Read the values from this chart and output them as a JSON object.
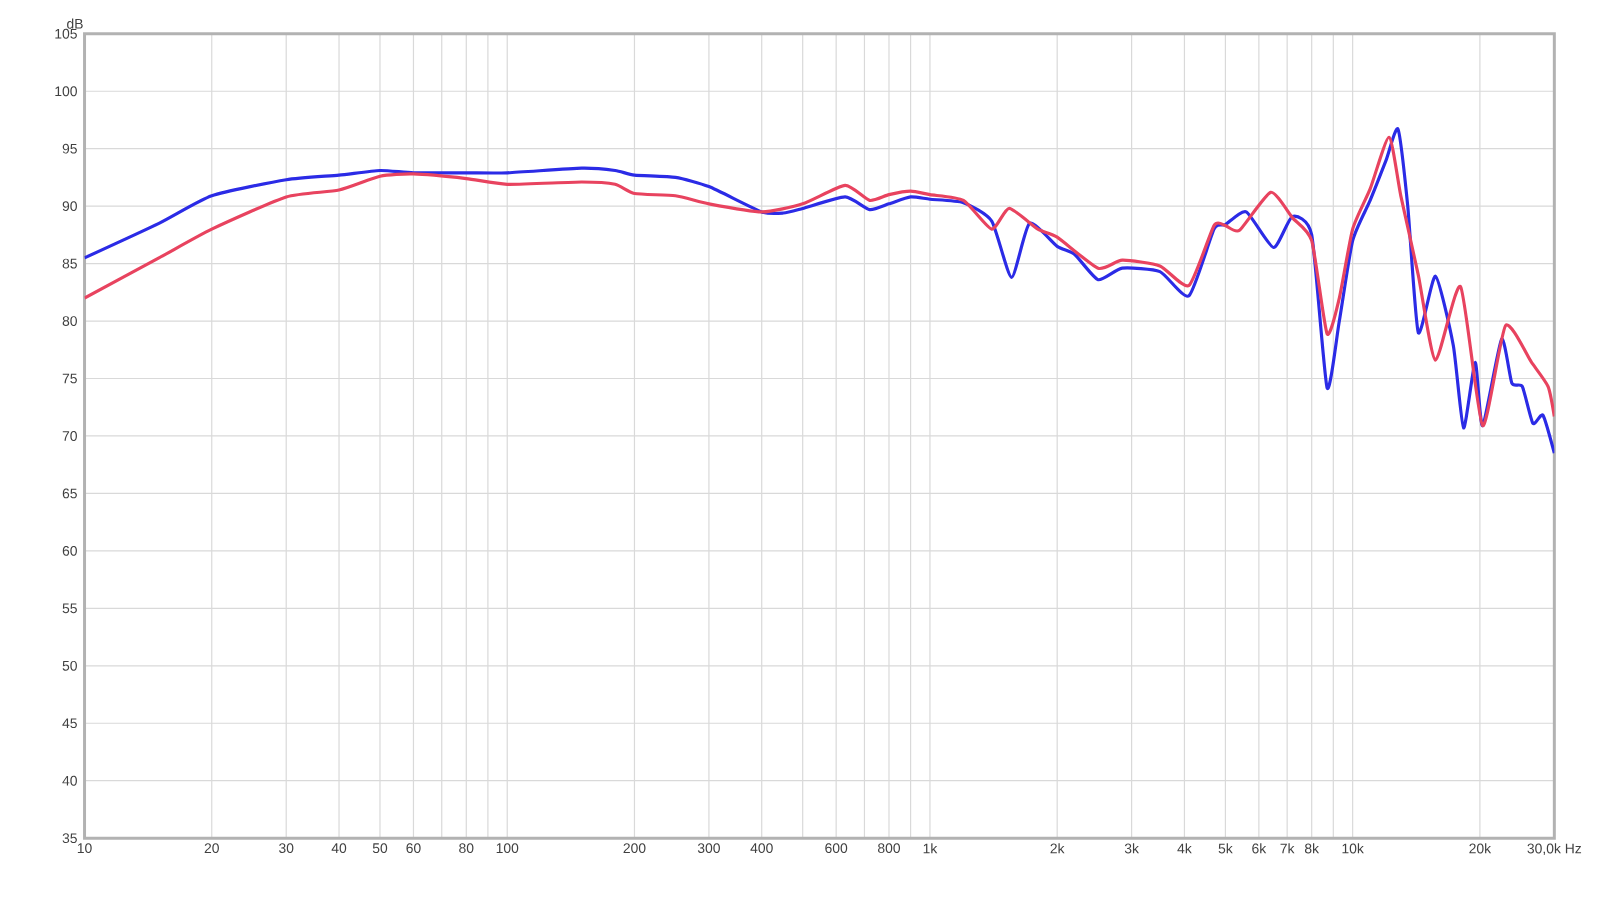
{
  "chart_data": {
    "type": "line",
    "ylabel": "dB",
    "log": "x",
    "grid": true,
    "xlim": [
      10,
      30000
    ],
    "ylim": [
      35,
      105
    ],
    "xticks": [
      10,
      20,
      30,
      40,
      50,
      60,
      {
        "value": 70,
        "label": null
      },
      80,
      {
        "value": 90,
        "label": null
      },
      100,
      200,
      300,
      400,
      {
        "value": 500,
        "label": null
      },
      600,
      {
        "value": 700,
        "label": null
      },
      800,
      {
        "value": 900,
        "label": null
      },
      {
        "value": 1000,
        "label": "1k"
      },
      {
        "value": 2000,
        "label": "2k"
      },
      {
        "value": 3000,
        "label": "3k"
      },
      {
        "value": 4000,
        "label": "4k"
      },
      {
        "value": 5000,
        "label": "5k"
      },
      {
        "value": 6000,
        "label": "6k"
      },
      {
        "value": 7000,
        "label": "7k"
      },
      {
        "value": 8000,
        "label": "8k"
      },
      {
        "value": 9000,
        "label": null
      },
      {
        "value": 10000,
        "label": "10k"
      },
      {
        "value": 20000,
        "label": "20k"
      },
      {
        "value": 30000,
        "label": "30,0k Hz"
      }
    ],
    "yticks": [
      35,
      40,
      45,
      50,
      55,
      60,
      65,
      70,
      75,
      80,
      85,
      90,
      95,
      100,
      105
    ],
    "series": [
      {
        "color": "#2b2be6",
        "x": [
          10,
          15,
          20,
          30,
          40,
          50,
          60,
          80,
          100,
          150,
          180,
          200,
          250,
          300,
          400,
          450,
          500,
          630,
          720,
          800,
          900,
          1000,
          1200,
          1400,
          1560,
          1720,
          2000,
          2200,
          2500,
          2850,
          3500,
          4100,
          4700,
          5000,
          5600,
          6500,
          7200,
          8000,
          8700,
          9300,
          10000,
          11000,
          12000,
          12800,
          13500,
          14300,
          15700,
          17300,
          18300,
          19500,
          20300,
          22500,
          23800,
          25200,
          26700,
          28200,
          30000
        ],
        "values": [
          85.5,
          88.5,
          90.9,
          92.3,
          92.7,
          93.1,
          92.9,
          92.9,
          92.9,
          93.3,
          93.1,
          92.7,
          92.5,
          91.7,
          89.5,
          89.4,
          89.8,
          90.8,
          89.7,
          90.2,
          90.8,
          90.6,
          90.3,
          88.7,
          83.8,
          88.5,
          86.5,
          85.8,
          83.6,
          84.6,
          84.3,
          82.2,
          88.0,
          88.4,
          89.5,
          86.4,
          89.1,
          87.5,
          74.2,
          80.0,
          87.0,
          90.5,
          94.0,
          96.7,
          90.0,
          79.0,
          83.9,
          77.9,
          70.7,
          76.4,
          70.9,
          78.4,
          74.6,
          74.3,
          71.1,
          71.8,
          68.5
        ]
      },
      {
        "color": "#e8435f",
        "x": [
          10,
          15,
          20,
          30,
          40,
          50,
          60,
          80,
          100,
          150,
          180,
          200,
          250,
          300,
          400,
          500,
          630,
          720,
          800,
          900,
          1000,
          1200,
          1400,
          1540,
          1800,
          2000,
          2500,
          2850,
          3500,
          4100,
          4700,
          5000,
          5400,
          6400,
          7200,
          8000,
          8700,
          9300,
          10000,
          11000,
          12200,
          13000,
          14300,
          15700,
          18000,
          20300,
          23000,
          26500,
          29000,
          30000
        ],
        "values": [
          82.0,
          85.5,
          88.0,
          90.8,
          91.4,
          92.6,
          92.8,
          92.4,
          91.9,
          92.1,
          91.9,
          91.1,
          90.9,
          90.2,
          89.5,
          90.2,
          91.8,
          90.5,
          91.0,
          91.3,
          91.0,
          90.5,
          88.0,
          89.8,
          88.0,
          87.3,
          84.6,
          85.3,
          84.8,
          83.1,
          88.3,
          88.3,
          87.9,
          91.2,
          89.0,
          87.0,
          78.9,
          82.0,
          88.0,
          91.5,
          96.0,
          90.9,
          84.0,
          76.6,
          83.0,
          70.9,
          79.6,
          76.4,
          74.3,
          71.7
        ]
      }
    ]
  }
}
